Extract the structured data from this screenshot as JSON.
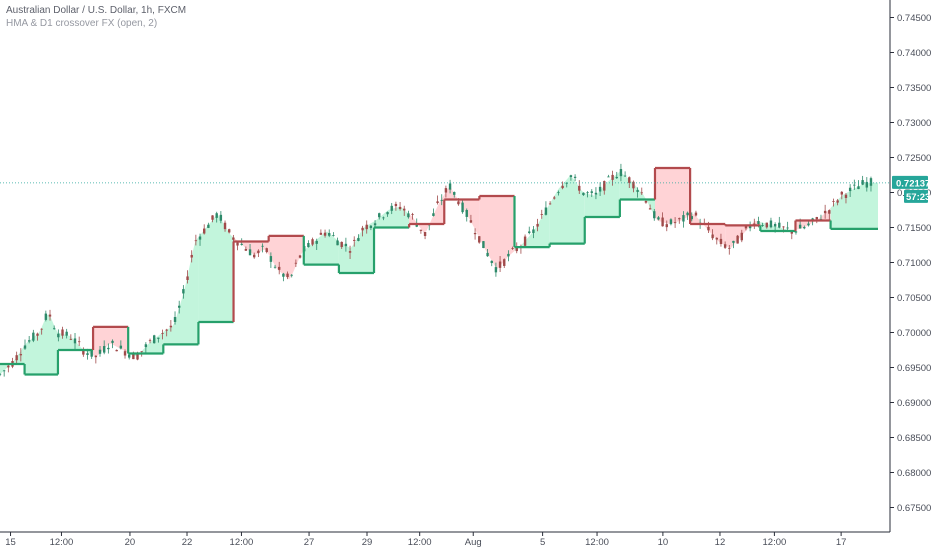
{
  "legend": {
    "symbol": "Australian Dollar / U.S. Dollar, 1h, FXCM",
    "indicator": "HMA & D1 crossover FX (open, 2)"
  },
  "colors": {
    "bull_fill": "#c2f5dc",
    "bear_fill": "#ffd3d6",
    "bull_line": "#26a06b",
    "bear_line": "#b24a4d",
    "candle_up": "#2d8a6a",
    "candle_down": "#a04a4a",
    "last_price": "#26a69a"
  },
  "chart_data": {
    "type": "line",
    "y_axis": {
      "ticks": [
        "0.74500",
        "0.74000",
        "0.73500",
        "0.73000",
        "0.72500",
        "0.72000",
        "0.71500",
        "0.71000",
        "0.70500",
        "0.70000",
        "0.69500",
        "0.69000",
        "0.68500",
        "0.68000",
        "0.67500"
      ],
      "range": [
        0.6715,
        0.7475
      ],
      "position": "right"
    },
    "x_axis": {
      "ticks": [
        "15",
        "12:00",
        "20",
        "22",
        "12:00",
        "27",
        "29",
        "12:00",
        "Aug",
        "5",
        "12:00",
        "10",
        "12",
        "12:00",
        "17"
      ],
      "range": [
        0,
        1
      ]
    },
    "last_price": "0.72137",
    "countdown": "57:23",
    "grid": false,
    "d1_line": [
      {
        "x0": 0.0,
        "x1": 0.028,
        "y": 0.6955
      },
      {
        "x0": 0.028,
        "x1": 0.066,
        "y": 0.694
      },
      {
        "x0": 0.066,
        "x1": 0.106,
        "y": 0.6975
      },
      {
        "x0": 0.106,
        "x1": 0.146,
        "y": 0.7008
      },
      {
        "x0": 0.146,
        "x1": 0.186,
        "y": 0.697
      },
      {
        "x0": 0.186,
        "x1": 0.226,
        "y": 0.6983
      },
      {
        "x0": 0.226,
        "x1": 0.266,
        "y": 0.7015
      },
      {
        "x0": 0.266,
        "x1": 0.306,
        "y": 0.713
      },
      {
        "x0": 0.306,
        "x1": 0.346,
        "y": 0.7138
      },
      {
        "x0": 0.346,
        "x1": 0.386,
        "y": 0.7097
      },
      {
        "x0": 0.386,
        "x1": 0.426,
        "y": 0.7085
      },
      {
        "x0": 0.426,
        "x1": 0.466,
        "y": 0.715
      },
      {
        "x0": 0.466,
        "x1": 0.506,
        "y": 0.7155
      },
      {
        "x0": 0.506,
        "x1": 0.546,
        "y": 0.719
      },
      {
        "x0": 0.546,
        "x1": 0.586,
        "y": 0.7195
      },
      {
        "x0": 0.586,
        "x1": 0.626,
        "y": 0.7122
      },
      {
        "x0": 0.626,
        "x1": 0.666,
        "y": 0.7127
      },
      {
        "x0": 0.666,
        "x1": 0.706,
        "y": 0.7165
      },
      {
        "x0": 0.706,
        "x1": 0.746,
        "y": 0.719
      },
      {
        "x0": 0.746,
        "x1": 0.786,
        "y": 0.7235
      },
      {
        "x0": 0.786,
        "x1": 0.826,
        "y": 0.7155
      },
      {
        "x0": 0.826,
        "x1": 0.866,
        "y": 0.7153
      },
      {
        "x0": 0.866,
        "x1": 0.906,
        "y": 0.7145
      },
      {
        "x0": 0.906,
        "x1": 0.946,
        "y": 0.716
      },
      {
        "x0": 0.946,
        "x1": 1.0,
        "y": 0.7148
      }
    ],
    "price_path": [
      {
        "x": 0.0,
        "y": 0.694
      },
      {
        "x": 0.015,
        "y": 0.6958
      },
      {
        "x": 0.03,
        "y": 0.6985
      },
      {
        "x": 0.045,
        "y": 0.7
      },
      {
        "x": 0.055,
        "y": 0.703
      },
      {
        "x": 0.065,
        "y": 0.7
      },
      {
        "x": 0.08,
        "y": 0.6995
      },
      {
        "x": 0.095,
        "y": 0.6975
      },
      {
        "x": 0.11,
        "y": 0.6965
      },
      {
        "x": 0.125,
        "y": 0.6985
      },
      {
        "x": 0.14,
        "y": 0.6975
      },
      {
        "x": 0.155,
        "y": 0.6965
      },
      {
        "x": 0.17,
        "y": 0.6985
      },
      {
        "x": 0.185,
        "y": 0.7
      },
      {
        "x": 0.198,
        "y": 0.701
      },
      {
        "x": 0.21,
        "y": 0.706
      },
      {
        "x": 0.222,
        "y": 0.713
      },
      {
        "x": 0.235,
        "y": 0.715
      },
      {
        "x": 0.248,
        "y": 0.717
      },
      {
        "x": 0.262,
        "y": 0.714
      },
      {
        "x": 0.276,
        "y": 0.7125
      },
      {
        "x": 0.29,
        "y": 0.711
      },
      {
        "x": 0.302,
        "y": 0.712
      },
      {
        "x": 0.316,
        "y": 0.709
      },
      {
        "x": 0.33,
        "y": 0.7075
      },
      {
        "x": 0.344,
        "y": 0.7115
      },
      {
        "x": 0.358,
        "y": 0.713
      },
      {
        "x": 0.372,
        "y": 0.7145
      },
      {
        "x": 0.386,
        "y": 0.713
      },
      {
        "x": 0.4,
        "y": 0.712
      },
      {
        "x": 0.414,
        "y": 0.715
      },
      {
        "x": 0.428,
        "y": 0.716
      },
      {
        "x": 0.442,
        "y": 0.7175
      },
      {
        "x": 0.456,
        "y": 0.718
      },
      {
        "x": 0.47,
        "y": 0.7165
      },
      {
        "x": 0.484,
        "y": 0.714
      },
      {
        "x": 0.498,
        "y": 0.718
      },
      {
        "x": 0.512,
        "y": 0.721
      },
      {
        "x": 0.524,
        "y": 0.7185
      },
      {
        "x": 0.538,
        "y": 0.7155
      },
      {
        "x": 0.552,
        "y": 0.712
      },
      {
        "x": 0.566,
        "y": 0.709
      },
      {
        "x": 0.58,
        "y": 0.711
      },
      {
        "x": 0.594,
        "y": 0.7125
      },
      {
        "x": 0.608,
        "y": 0.7145
      },
      {
        "x": 0.622,
        "y": 0.7175
      },
      {
        "x": 0.636,
        "y": 0.7205
      },
      {
        "x": 0.65,
        "y": 0.7225
      },
      {
        "x": 0.664,
        "y": 0.72
      },
      {
        "x": 0.678,
        "y": 0.7195
      },
      {
        "x": 0.692,
        "y": 0.7215
      },
      {
        "x": 0.706,
        "y": 0.723
      },
      {
        "x": 0.72,
        "y": 0.7215
      },
      {
        "x": 0.734,
        "y": 0.7195
      },
      {
        "x": 0.748,
        "y": 0.716
      },
      {
        "x": 0.762,
        "y": 0.7155
      },
      {
        "x": 0.776,
        "y": 0.716
      },
      {
        "x": 0.79,
        "y": 0.717
      },
      {
        "x": 0.804,
        "y": 0.715
      },
      {
        "x": 0.818,
        "y": 0.713
      },
      {
        "x": 0.832,
        "y": 0.712
      },
      {
        "x": 0.846,
        "y": 0.714
      },
      {
        "x": 0.86,
        "y": 0.716
      },
      {
        "x": 0.874,
        "y": 0.7155
      },
      {
        "x": 0.888,
        "y": 0.715
      },
      {
        "x": 0.902,
        "y": 0.7145
      },
      {
        "x": 0.916,
        "y": 0.715
      },
      {
        "x": 0.93,
        "y": 0.716
      },
      {
        "x": 0.944,
        "y": 0.7175
      },
      {
        "x": 0.958,
        "y": 0.7195
      },
      {
        "x": 0.972,
        "y": 0.7205
      },
      {
        "x": 0.986,
        "y": 0.7214
      }
    ]
  }
}
